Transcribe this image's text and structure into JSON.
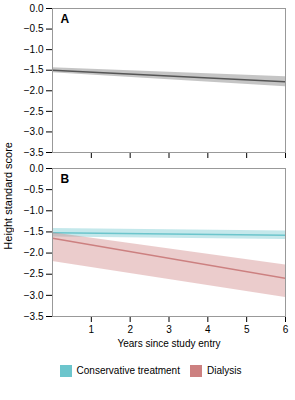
{
  "chart_data": [
    {
      "type": "line",
      "title": "A",
      "ylabel": "Height standard score",
      "x": [
        0,
        6
      ],
      "series": [
        {
          "type": "area",
          "color": "#bbbbbb",
          "ci_upper": [
            -1.44,
            -1.66
          ],
          "ci_lower": [
            -1.56,
            -1.9
          ]
        },
        {
          "type": "line",
          "color": "#555555",
          "values": [
            -1.5,
            -1.78
          ]
        }
      ],
      "xlim": [
        0,
        6
      ],
      "ylim": [
        -3.5,
        0.0
      ],
      "xticks": [
        1,
        2,
        3,
        4,
        5,
        6
      ],
      "yticks": [
        {
          "value": 0.0,
          "label": "0.0"
        },
        -0.5,
        {
          "value": -1.0,
          "label": "−1.0"
        },
        -1.5,
        {
          "value": -2.0,
          "label": "−2.0"
        },
        -2.5,
        {
          "value": -3.0,
          "label": "−3.0"
        },
        -3.5
      ],
      "tick_labels": "y",
      "grid": false
    },
    {
      "type": "line",
      "title": "B",
      "xlabel": "Years since study entry",
      "x": [
        0,
        6
      ],
      "series": [
        {
          "name": "Conservative treatment",
          "color": "#6cc5cc",
          "values": [
            -1.52,
            -1.58
          ],
          "ci_upper": [
            -1.42,
            -1.48
          ],
          "ci_lower": [
            -1.62,
            -1.68
          ]
        },
        {
          "name": "Dialysis",
          "color": "#cc8080",
          "values": [
            -1.65,
            -2.6
          ],
          "ci_upper": [
            -1.52,
            -2.28
          ],
          "ci_lower": [
            -2.2,
            -3.05
          ]
        }
      ],
      "xlim": [
        0,
        6
      ],
      "ylim": [
        -3.5,
        0.0
      ],
      "xticks": [
        1,
        2,
        3,
        4,
        5,
        6
      ],
      "yticks": [
        {
          "value": 0.0,
          "label": "0.0"
        },
        -0.5,
        {
          "value": -1.0,
          "label": "−1.0"
        },
        -1.5,
        {
          "value": -2.0,
          "label": "−2.0"
        },
        -2.5,
        {
          "value": -3.0,
          "label": "−3.0"
        },
        -3.5
      ],
      "legend": "bottom",
      "grid": false
    }
  ]
}
